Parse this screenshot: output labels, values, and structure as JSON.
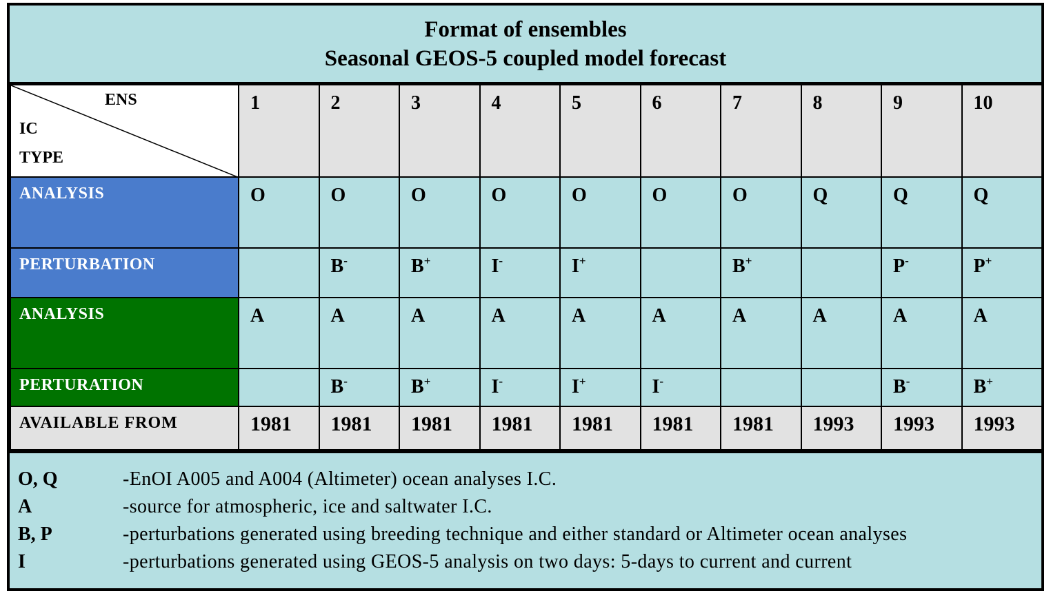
{
  "title": {
    "line1": "Format of ensembles",
    "line2": "Seasonal GEOS-5 coupled model forecast"
  },
  "corner": {
    "ens": "ENS",
    "ic": "IC",
    "type": "TYPE"
  },
  "ens_numbers": [
    "1",
    "2",
    "3",
    "4",
    "5",
    "6",
    "7",
    "8",
    "9",
    "10"
  ],
  "rows": {
    "ocean_analysis": {
      "label": "ANALYSIS",
      "values": [
        "O",
        "O",
        "O",
        "O",
        "O",
        "O",
        "O",
        "Q",
        "Q",
        "Q"
      ],
      "color": "#4a7ccc"
    },
    "ocean_perturbation": {
      "label": "PERTURBATION",
      "values": [
        {
          "base": "",
          "sup": ""
        },
        {
          "base": "B",
          "sup": "-"
        },
        {
          "base": "B",
          "sup": "+"
        },
        {
          "base": "I",
          "sup": "-"
        },
        {
          "base": "I",
          "sup": "+"
        },
        {
          "base": "",
          "sup": ""
        },
        {
          "base": "B",
          "sup": "+"
        },
        {
          "base": "",
          "sup": ""
        },
        {
          "base": "P",
          "sup": "-"
        },
        {
          "base": "P",
          "sup": "+"
        }
      ],
      "color": "#4a7ccc"
    },
    "atmos_analysis": {
      "label": "ANALYSIS",
      "values": [
        "A",
        "A",
        "A",
        "A",
        "A",
        "A",
        "A",
        "A",
        "A",
        "A"
      ],
      "color": "#007300"
    },
    "atmos_perturbation": {
      "label": "PERTURATION",
      "values": [
        {
          "base": "",
          "sup": ""
        },
        {
          "base": "B",
          "sup": "-"
        },
        {
          "base": "B",
          "sup": "+"
        },
        {
          "base": "I",
          "sup": "-"
        },
        {
          "base": "I",
          "sup": "+"
        },
        {
          "base": "I",
          "sup": "-"
        },
        {
          "base": "",
          "sup": ""
        },
        {
          "base": "",
          "sup": ""
        },
        {
          "base": "B",
          "sup": "-"
        },
        {
          "base": "B",
          "sup": "+"
        }
      ],
      "color": "#007300"
    },
    "available": {
      "label": "AVAILABLE FROM",
      "values": [
        "1981",
        "1981",
        "1981",
        "1981",
        "1981",
        "1981",
        "1981",
        "1993",
        "1993",
        "1993"
      ]
    }
  },
  "legend": [
    {
      "key": "O, Q",
      "desc": "-EnOI A005 and A004 (Altimeter) ocean analyses I.C."
    },
    {
      "key": "A",
      "desc": "-source for atmospheric, ice and saltwater I.C."
    },
    {
      "key": "B, P",
      "desc": "-perturbations generated using breeding technique and either standard or Altimeter ocean analyses"
    },
    {
      "key": "I",
      "desc": "-perturbations generated using  GEOS-5 analysis on two days: 5-days to current and current"
    }
  ],
  "colors": {
    "background": "#b5dfe2",
    "header_gray": "#e2e2e2",
    "ocean_blue": "#4a7ccc",
    "atmos_green": "#007300"
  }
}
